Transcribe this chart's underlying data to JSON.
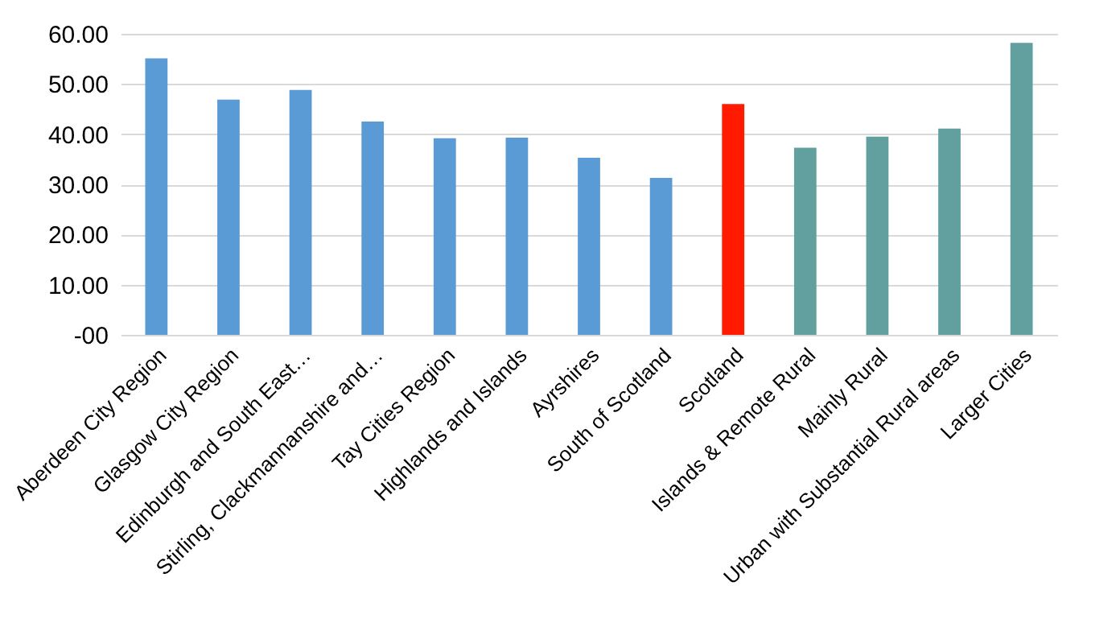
{
  "chart_data": {
    "type": "bar",
    "categories": [
      "Aberdeen City Region",
      "Glasgow City Region",
      "Edinburgh and South East…",
      "Stirling, Clackmannanshire and…",
      "Tay Cities Region",
      "Highlands and Islands",
      "Ayrshires",
      "South of Scotland",
      "Scotland",
      "Islands & Remote Rural",
      "Mainly Rural",
      "Urban with Substantial Rural areas",
      "Larger Cities"
    ],
    "values": [
      55.1,
      46.9,
      48.8,
      42.5,
      39.2,
      39.3,
      35.3,
      31.3,
      46.0,
      37.3,
      39.5,
      41.1,
      58.2
    ],
    "colors": [
      "#5b9bd5",
      "#5b9bd5",
      "#5b9bd5",
      "#5b9bd5",
      "#5b9bd5",
      "#5b9bd5",
      "#5b9bd5",
      "#5b9bd5",
      "#ff1a00",
      "#62a0a0",
      "#62a0a0",
      "#62a0a0",
      "#62a0a0"
    ],
    "ylim": [
      0,
      60
    ],
    "yticks": [
      {
        "value": 0,
        "label": "-00"
      },
      {
        "value": 10,
        "label": "10.00"
      },
      {
        "value": 20,
        "label": "20.00"
      },
      {
        "value": 30,
        "label": "30.00"
      },
      {
        "value": 40,
        "label": "40.00"
      },
      {
        "value": 50,
        "label": "50.00"
      },
      {
        "value": 60,
        "label": "60.00"
      }
    ],
    "grid": "y"
  }
}
